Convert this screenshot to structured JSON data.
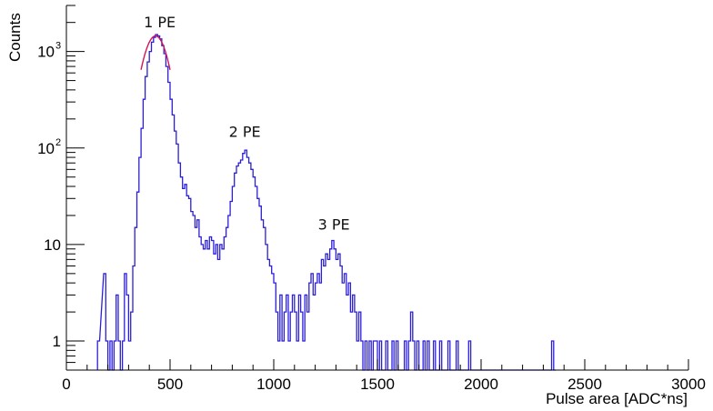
{
  "chart_data": {
    "type": "histogram",
    "title": "",
    "xlabel": "Pulse area [ADC*ns]",
    "ylabel": "Counts",
    "xlim": [
      0,
      3000
    ],
    "ylim": [
      0.5,
      3000
    ],
    "y_scale": "log",
    "bin_width": 10,
    "grid": false,
    "legend": "none",
    "x_ticks": [
      {
        "value": 0,
        "label": "0"
      },
      {
        "value": 500,
        "label": "500"
      },
      {
        "value": 1000,
        "label": "1000"
      },
      {
        "value": 1500,
        "label": "1500"
      },
      {
        "value": 2000,
        "label": "2000"
      },
      {
        "value": 2500,
        "label": "2500"
      },
      {
        "value": 3000,
        "label": "3000"
      }
    ],
    "y_ticks": [
      {
        "value": 1,
        "base": "1",
        "exp": ""
      },
      {
        "value": 10,
        "base": "10",
        "exp": ""
      },
      {
        "value": 100,
        "base": "10",
        "exp": "2"
      },
      {
        "value": 1000,
        "base": "10",
        "exp": "3"
      }
    ],
    "annotations": [
      {
        "text": "1 PE",
        "x": 450,
        "y": 1500
      },
      {
        "text": "2 PE",
        "x": 860,
        "y": 110
      },
      {
        "text": "3 PE",
        "x": 1290,
        "y": 12
      }
    ],
    "colors": {
      "histogram": "#2b1fd6",
      "fit": "#d4145a",
      "axis": "#000000"
    },
    "series": [
      {
        "bins": [
          [
            150,
            1
          ],
          [
            180,
            5
          ],
          [
            190,
            1
          ],
          [
            200,
            0
          ],
          [
            210,
            1
          ],
          [
            220,
            0
          ],
          [
            230,
            1
          ],
          [
            240,
            3
          ],
          [
            250,
            1
          ],
          [
            260,
            0
          ],
          [
            270,
            1
          ],
          [
            280,
            5
          ],
          [
            290,
            3
          ],
          [
            300,
            1
          ],
          [
            310,
            2
          ],
          [
            320,
            6
          ],
          [
            330,
            15
          ],
          [
            340,
            35
          ],
          [
            350,
            80
          ],
          [
            360,
            160
          ],
          [
            370,
            320
          ],
          [
            380,
            550
          ],
          [
            390,
            780
          ],
          [
            400,
            1000
          ],
          [
            410,
            1250
          ],
          [
            420,
            1400
          ],
          [
            430,
            1500
          ],
          [
            440,
            1450
          ],
          [
            450,
            1350
          ],
          [
            460,
            1150
          ],
          [
            470,
            950
          ],
          [
            480,
            700
          ],
          [
            490,
            480
          ],
          [
            500,
            320
          ],
          [
            510,
            220
          ],
          [
            520,
            150
          ],
          [
            530,
            110
          ],
          [
            540,
            70
          ],
          [
            550,
            50
          ],
          [
            560,
            38
          ],
          [
            570,
            42
          ],
          [
            580,
            32
          ],
          [
            590,
            30
          ],
          [
            600,
            22
          ],
          [
            610,
            20
          ],
          [
            620,
            15
          ],
          [
            630,
            18
          ],
          [
            640,
            12
          ],
          [
            650,
            10
          ],
          [
            660,
            9
          ],
          [
            670,
            11
          ],
          [
            680,
            9
          ],
          [
            690,
            12
          ],
          [
            700,
            11
          ],
          [
            710,
            8
          ],
          [
            720,
            10
          ],
          [
            730,
            7
          ],
          [
            740,
            10
          ],
          [
            750,
            9
          ],
          [
            760,
            12
          ],
          [
            770,
            15
          ],
          [
            780,
            20
          ],
          [
            790,
            28
          ],
          [
            800,
            40
          ],
          [
            810,
            55
          ],
          [
            820,
            65
          ],
          [
            830,
            70
          ],
          [
            840,
            75
          ],
          [
            850,
            88
          ],
          [
            860,
            95
          ],
          [
            870,
            80
          ],
          [
            880,
            70
          ],
          [
            890,
            60
          ],
          [
            900,
            50
          ],
          [
            910,
            40
          ],
          [
            920,
            30
          ],
          [
            930,
            25
          ],
          [
            940,
            18
          ],
          [
            950,
            15
          ],
          [
            960,
            10
          ],
          [
            970,
            7
          ],
          [
            980,
            6
          ],
          [
            990,
            5
          ],
          [
            1000,
            4
          ],
          [
            1010,
            2
          ],
          [
            1020,
            1
          ],
          [
            1030,
            3
          ],
          [
            1040,
            1
          ],
          [
            1050,
            2
          ],
          [
            1060,
            3
          ],
          [
            1070,
            1
          ],
          [
            1080,
            2
          ],
          [
            1090,
            3
          ],
          [
            1100,
            2
          ],
          [
            1110,
            1
          ],
          [
            1120,
            3
          ],
          [
            1130,
            2
          ],
          [
            1140,
            1
          ],
          [
            1150,
            3
          ],
          [
            1160,
            2
          ],
          [
            1170,
            4
          ],
          [
            1180,
            5
          ],
          [
            1190,
            3
          ],
          [
            1200,
            4
          ],
          [
            1210,
            5
          ],
          [
            1220,
            4
          ],
          [
            1230,
            7
          ],
          [
            1240,
            6
          ],
          [
            1250,
            8
          ],
          [
            1260,
            7
          ],
          [
            1270,
            9
          ],
          [
            1280,
            11
          ],
          [
            1290,
            9
          ],
          [
            1300,
            7
          ],
          [
            1310,
            8
          ],
          [
            1320,
            6
          ],
          [
            1330,
            4
          ],
          [
            1340,
            5
          ],
          [
            1350,
            3
          ],
          [
            1360,
            4
          ],
          [
            1370,
            2
          ],
          [
            1380,
            3
          ],
          [
            1390,
            2
          ],
          [
            1400,
            1
          ],
          [
            1410,
            2
          ],
          [
            1420,
            1
          ],
          [
            1430,
            0
          ],
          [
            1440,
            1
          ],
          [
            1450,
            0
          ],
          [
            1460,
            1
          ],
          [
            1470,
            0
          ],
          [
            1480,
            1
          ],
          [
            1490,
            1
          ],
          [
            1500,
            0
          ],
          [
            1510,
            1
          ],
          [
            1520,
            0
          ],
          [
            1530,
            0
          ],
          [
            1540,
            1
          ],
          [
            1550,
            0
          ],
          [
            1560,
            0
          ],
          [
            1570,
            1
          ],
          [
            1580,
            0
          ],
          [
            1590,
            1
          ],
          [
            1600,
            0
          ],
          [
            1610,
            0
          ],
          [
            1620,
            0
          ],
          [
            1630,
            1
          ],
          [
            1640,
            0
          ],
          [
            1650,
            1
          ],
          [
            1660,
            2
          ],
          [
            1670,
            1
          ],
          [
            1680,
            0
          ],
          [
            1690,
            1
          ],
          [
            1700,
            0
          ],
          [
            1710,
            0
          ],
          [
            1720,
            1
          ],
          [
            1730,
            0
          ],
          [
            1740,
            1
          ],
          [
            1750,
            0
          ],
          [
            1760,
            0
          ],
          [
            1770,
            1
          ],
          [
            1780,
            0
          ],
          [
            1790,
            0
          ],
          [
            1800,
            1
          ],
          [
            1810,
            0
          ],
          [
            1820,
            0
          ],
          [
            1830,
            0
          ],
          [
            1840,
            1
          ],
          [
            1850,
            0
          ],
          [
            1860,
            0
          ],
          [
            1870,
            0
          ],
          [
            1880,
            1
          ],
          [
            1890,
            0
          ],
          [
            1900,
            0
          ],
          [
            1910,
            0
          ],
          [
            1920,
            0
          ],
          [
            1930,
            0
          ],
          [
            1940,
            1
          ],
          [
            1950,
            0
          ],
          [
            1960,
            0
          ],
          [
            1970,
            0
          ],
          [
            1980,
            0
          ],
          [
            1990,
            0
          ],
          [
            2000,
            0
          ],
          [
            2010,
            0
          ],
          [
            2020,
            0
          ],
          [
            2030,
            0
          ],
          [
            2040,
            0
          ],
          [
            2050,
            0
          ],
          [
            2060,
            0
          ],
          [
            2070,
            0
          ],
          [
            2080,
            0
          ],
          [
            2090,
            0
          ],
          [
            2100,
            0
          ],
          [
            2110,
            0
          ],
          [
            2120,
            0
          ],
          [
            2130,
            0
          ],
          [
            2140,
            0
          ],
          [
            2150,
            0
          ],
          [
            2160,
            0
          ],
          [
            2170,
            0
          ],
          [
            2180,
            0
          ],
          [
            2190,
            0
          ],
          [
            2200,
            0
          ],
          [
            2210,
            0
          ],
          [
            2220,
            0
          ],
          [
            2230,
            0
          ],
          [
            2240,
            0
          ],
          [
            2250,
            0
          ],
          [
            2260,
            0
          ],
          [
            2270,
            0
          ],
          [
            2280,
            0
          ],
          [
            2290,
            0
          ],
          [
            2300,
            0
          ],
          [
            2310,
            0
          ],
          [
            2320,
            0
          ],
          [
            2330,
            0
          ],
          [
            2340,
            1
          ],
          [
            2350,
            0
          ]
        ]
      }
    ],
    "fit": {
      "type": "gaussian",
      "mean": 430,
      "sigma": 55,
      "amplitude": 1450,
      "range": [
        360,
        500
      ]
    }
  }
}
